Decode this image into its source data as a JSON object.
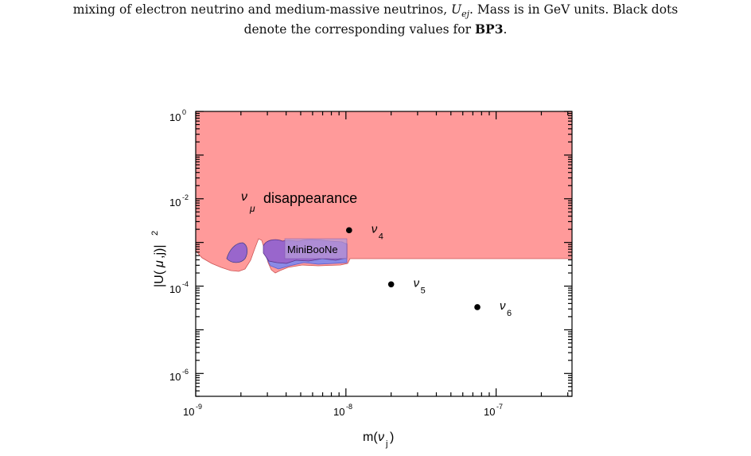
{
  "caption": {
    "line1_pre": "mixing of electron neutrino and medium-massive neutrinos, ",
    "sym": "U",
    "sym_sub": "ej",
    "line1_post": ". Mass is in GeV units. Black dots",
    "line2_pre": "denote the corresponding values for ",
    "line2_bold": "BP3",
    "line2_post": "."
  },
  "chart_data": {
    "type": "scatter",
    "x_scale": "log",
    "y_scale": "log",
    "xlim": [
      1e-09,
      3.2e-07
    ],
    "ylim": [
      3e-07,
      1
    ],
    "xlabel": "m(ν_j)",
    "ylabel": "|U(μ,j)|^2",
    "x_ticks": [
      "10^-9",
      "10^-8",
      "10^-7"
    ],
    "y_ticks": [
      "10^0",
      "10^-2",
      "10^-4",
      "10^-6"
    ],
    "grid": false,
    "regions": [
      {
        "label": "ν_μ disappearance",
        "color": "#ff9a9a",
        "description": "excluded region above ~8e-4"
      },
      {
        "label": "MiniBooNe",
        "color": "#9966cc",
        "description": "purple/blue excluded islands"
      }
    ],
    "points": [
      {
        "label": "ν_4",
        "x": 1.05e-08,
        "y": 0.0019
      },
      {
        "label": "ν_5",
        "x": 2e-08,
        "y": 0.00011
      },
      {
        "label": "ν_6",
        "x": 7.5e-08,
        "y": 3.3e-05
      }
    ],
    "annotations": [
      "ν_μ disappearance",
      "MiniBooNe"
    ]
  }
}
